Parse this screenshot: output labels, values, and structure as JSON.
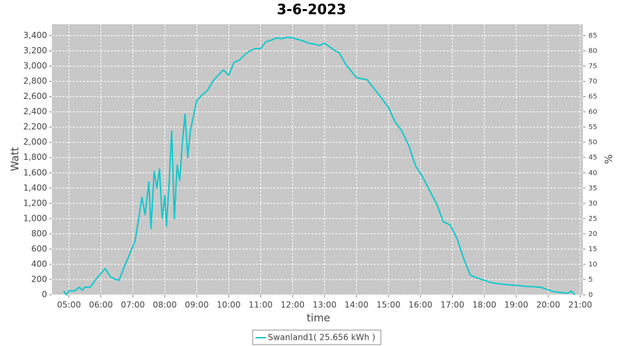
{
  "chart_data": {
    "type": "line",
    "title": "3-6-2023",
    "x_label": "time",
    "y_label": "Watt",
    "y2_label": "%",
    "x": [
      "04:50",
      "04:55",
      "05:00",
      "05:10",
      "05:20",
      "05:25",
      "05:30",
      "05:40",
      "05:50",
      "06:00",
      "06:08",
      "06:18",
      "06:25",
      "06:34",
      "06:44",
      "06:55",
      "07:04",
      "07:10",
      "07:17",
      "07:23",
      "07:30",
      "07:34",
      "07:40",
      "07:45",
      "07:50",
      "07:55",
      "08:00",
      "08:03",
      "08:08",
      "08:13",
      "08:18",
      "08:23",
      "08:28",
      "08:33",
      "08:38",
      "08:43",
      "08:48",
      "09:00",
      "09:10",
      "09:20",
      "09:30",
      "09:40",
      "09:50",
      "10:00",
      "10:10",
      "10:20",
      "10:30",
      "10:40",
      "10:50",
      "11:00",
      "11:10",
      "11:20",
      "11:30",
      "11:40",
      "11:50",
      "12:00",
      "12:10",
      "12:20",
      "12:30",
      "12:40",
      "12:50",
      "13:00",
      "13:10",
      "13:20",
      "13:27",
      "13:40",
      "14:00",
      "14:20",
      "14:46",
      "15:00",
      "15:12",
      "15:25",
      "15:38",
      "15:51",
      "16:04",
      "16:17",
      "16:30",
      "16:43",
      "16:56",
      "17:09",
      "17:22",
      "17:34",
      "17:47",
      "18:00",
      "18:13",
      "18:26",
      "18:40",
      "18:53",
      "19:06",
      "19:19",
      "19:32",
      "19:45",
      "19:58",
      "20:11",
      "20:24",
      "20:37",
      "20:43",
      "20:50"
    ],
    "series": [
      {
        "name": "Swanland1( 25.656 kWh )",
        "color": "#11c8cc",
        "values": [
          50,
          0,
          50,
          50,
          100,
          60,
          100,
          100,
          200,
          280,
          345,
          235,
          210,
          190,
          370,
          550,
          700,
          960,
          1280,
          1050,
          1480,
          870,
          1620,
          1400,
          1650,
          1000,
          1300,
          900,
          1450,
          2150,
          1000,
          1700,
          1500,
          2000,
          2370,
          1800,
          2150,
          2550,
          2620,
          2680,
          2800,
          2880,
          2950,
          2880,
          3050,
          3080,
          3150,
          3200,
          3230,
          3230,
          3320,
          3340,
          3370,
          3360,
          3380,
          3370,
          3350,
          3330,
          3300,
          3290,
          3270,
          3300,
          3250,
          3200,
          3180,
          3020,
          2850,
          2820,
          2590,
          2460,
          2275,
          2150,
          1960,
          1690,
          1550,
          1370,
          1200,
          960,
          915,
          735,
          460,
          255,
          220,
          190,
          160,
          145,
          135,
          127,
          120,
          110,
          105,
          100,
          70,
          40,
          30,
          20,
          50,
          0
        ]
      }
    ],
    "xlim": [
      "04:28",
      "21:05"
    ],
    "xticks": [
      "05:00",
      "06:00",
      "07:00",
      "08:00",
      "09:00",
      "10:00",
      "11:00",
      "12:00",
      "13:00",
      "14:00",
      "15:00",
      "16:00",
      "17:00",
      "18:00",
      "19:00",
      "20:00",
      "21:00"
    ],
    "ylim": [
      0,
      3550
    ],
    "yticks": [
      0,
      200,
      400,
      600,
      800,
      {
        "value": 1000,
        "label": "1,000"
      },
      {
        "value": 1200,
        "label": "1,200"
      },
      {
        "value": 1400,
        "label": "1,400"
      },
      {
        "value": 1600,
        "label": "1,600"
      },
      {
        "value": 1800,
        "label": "1,800"
      },
      {
        "value": 2000,
        "label": "2,000"
      },
      {
        "value": 2200,
        "label": "2,200"
      },
      {
        "value": 2400,
        "label": "2,400"
      },
      {
        "value": 2600,
        "label": "2,600"
      },
      {
        "value": 2800,
        "label": "2,800"
      },
      {
        "value": 3000,
        "label": "3,000"
      },
      {
        "value": 3200,
        "label": "3,200"
      },
      {
        "value": 3400,
        "label": "3,400"
      }
    ],
    "y2lim": [
      0,
      88.75
    ],
    "y2ticks": [
      0,
      5,
      10,
      15,
      20,
      25,
      30,
      35,
      40,
      45,
      50,
      55,
      60,
      65,
      70,
      75,
      80,
      85
    ],
    "grid": true,
    "legend": "bottom"
  }
}
